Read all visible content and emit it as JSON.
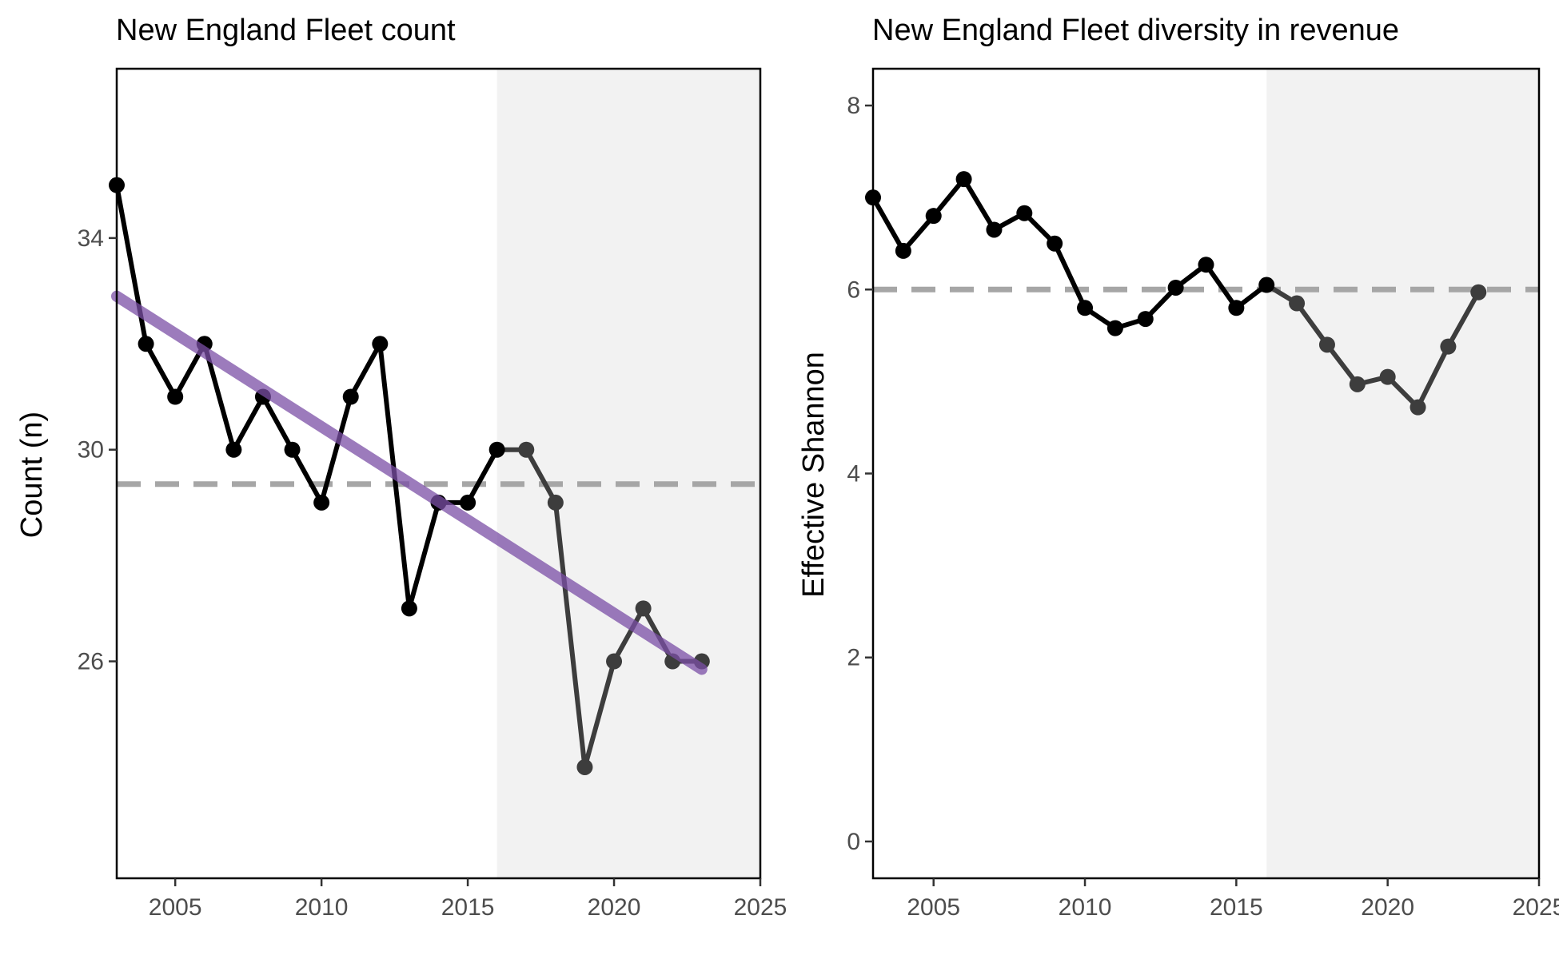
{
  "chart_data": [
    {
      "type": "line",
      "title": "New England Fleet count",
      "xlabel": "",
      "ylabel": "Count (n)",
      "xlim": [
        2003,
        2025
      ],
      "ylim": [
        21.9,
        37.2
      ],
      "x_ticks": [
        2005,
        2010,
        2015,
        2020,
        2025
      ],
      "y_ticks": [
        26,
        30,
        34
      ],
      "x_tick_labels": [
        "2005",
        "2010",
        "2015",
        "2020",
        "2025"
      ],
      "y_tick_labels": [
        "26",
        "30",
        "34"
      ],
      "shaded_region": [
        2016,
        2025
      ],
      "reference_line": 29.35,
      "trend_line": {
        "x": [
          2003,
          2023
        ],
        "y": [
          32.9,
          25.85
        ],
        "color": "#7b4fa6"
      },
      "grid": false,
      "series": [
        {
          "x": [
            2003,
            2004,
            2005,
            2006,
            2007,
            2008,
            2009,
            2010,
            2011,
            2012,
            2013,
            2014,
            2015,
            2016,
            2017,
            2018,
            2019,
            2020,
            2021,
            2022,
            2023
          ],
          "y": [
            35,
            32,
            31,
            32,
            30,
            31,
            30,
            29,
            31,
            32,
            27,
            29,
            29,
            30,
            30,
            29,
            24,
            26,
            27,
            26,
            26
          ]
        }
      ],
      "colors": {
        "line": "#000000",
        "line_recent": "#3d3d3d",
        "shade": "#f2f2f2",
        "reference": "#a6a6a6"
      }
    },
    {
      "type": "line",
      "title": "New England Fleet diversity in revenue",
      "xlabel": "",
      "ylabel": "Effective Shannon",
      "xlim": [
        2003,
        2025
      ],
      "ylim": [
        -0.4,
        8.4
      ],
      "x_ticks": [
        2005,
        2010,
        2015,
        2020,
        2025
      ],
      "y_ticks": [
        0,
        2,
        4,
        6,
        8
      ],
      "x_tick_labels": [
        "2005",
        "2010",
        "2015",
        "2020",
        "2025"
      ],
      "y_tick_labels": [
        "0",
        "2",
        "4",
        "6",
        "8"
      ],
      "shaded_region": [
        2016,
        2025
      ],
      "reference_line": 6.0,
      "grid": false,
      "series": [
        {
          "x": [
            2003,
            2004,
            2005,
            2006,
            2007,
            2008,
            2009,
            2010,
            2011,
            2012,
            2013,
            2014,
            2015,
            2016,
            2017,
            2018,
            2019,
            2020,
            2021,
            2022,
            2023
          ],
          "y": [
            7.0,
            6.42,
            6.8,
            7.2,
            6.65,
            6.83,
            6.5,
            5.8,
            5.58,
            5.68,
            6.02,
            6.27,
            5.8,
            6.05,
            5.85,
            5.4,
            4.97,
            5.05,
            4.72,
            5.38,
            5.97
          ]
        }
      ],
      "colors": {
        "line": "#000000",
        "line_recent": "#3d3d3d",
        "shade": "#f2f2f2",
        "reference": "#a6a6a6"
      }
    }
  ]
}
